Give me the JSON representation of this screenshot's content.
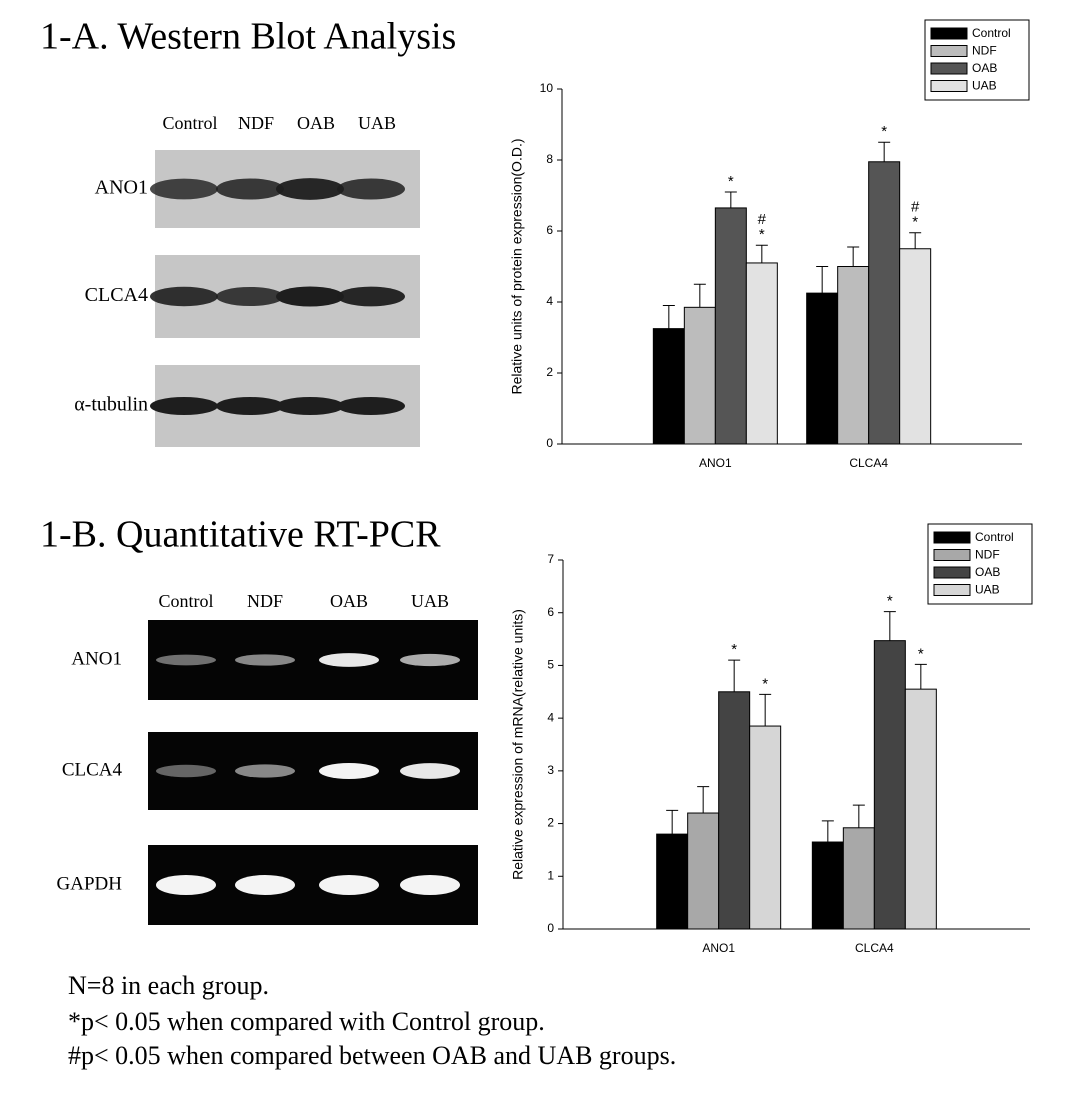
{
  "blots": [
    {
      "title": "1-A. Western Blot Analysis",
      "lanes": [
        "Control",
        "NDF",
        "OAB",
        "UAB"
      ],
      "rows": [
        "ANO1",
        "CLCA4",
        "α-tubulin"
      ]
    },
    {
      "title": "1-B. Quantitative RT-PCR",
      "lanes": [
        "Control",
        "NDF",
        "OAB",
        "UAB"
      ],
      "rows": [
        "ANO1",
        "CLCA4",
        "GAPDH"
      ]
    }
  ],
  "notes": [
    "N=8 in each group.",
    "*p< 0.05 when compared with Control group.",
    "#p< 0.05 when compared between OAB and UAB groups."
  ],
  "chart_data": [
    {
      "type": "bar",
      "ylabel": "Relative units of protein expression(O.D.)",
      "categories": [
        "ANO1",
        "CLCA4"
      ],
      "series": [
        {
          "name": "Control",
          "color": "#000000",
          "values": [
            3.25,
            4.25
          ],
          "errors": [
            0.65,
            0.75
          ]
        },
        {
          "name": "NDF",
          "color": "#bcbcbc",
          "values": [
            3.85,
            5.0
          ],
          "errors": [
            0.65,
            0.55
          ]
        },
        {
          "name": "OAB",
          "color": "#555555",
          "values": [
            6.65,
            7.95
          ],
          "errors": [
            0.45,
            0.55
          ]
        },
        {
          "name": "UAB",
          "color": "#e2e2e2",
          "values": [
            5.1,
            5.5
          ],
          "errors": [
            0.5,
            0.45
          ]
        }
      ],
      "annotations": [
        {
          "text": "*",
          "category": 0,
          "series": 2
        },
        {
          "text": "*",
          "category": 0,
          "series": 3
        },
        {
          "text": "#",
          "category": 0,
          "series": 3
        },
        {
          "text": "*",
          "category": 1,
          "series": 2
        },
        {
          "text": "*",
          "category": 1,
          "series": 3
        },
        {
          "text": "#",
          "category": 1,
          "series": 3
        }
      ],
      "ylim": [
        0,
        10
      ],
      "yticks": [
        0,
        2,
        4,
        6,
        8,
        10
      ],
      "legend": "upper right"
    },
    {
      "type": "bar",
      "ylabel": "Relative expression of mRNA(relative units)",
      "categories": [
        "ANO1",
        "CLCA4"
      ],
      "series": [
        {
          "name": "Control",
          "color": "#000000",
          "values": [
            1.8,
            1.65
          ],
          "errors": [
            0.45,
            0.4
          ]
        },
        {
          "name": "NDF",
          "color": "#a8a8a8",
          "values": [
            2.2,
            1.92
          ],
          "errors": [
            0.5,
            0.43
          ]
        },
        {
          "name": "OAB",
          "color": "#444444",
          "values": [
            4.5,
            5.47
          ],
          "errors": [
            0.6,
            0.55
          ]
        },
        {
          "name": "UAB",
          "color": "#d6d6d6",
          "values": [
            3.85,
            4.55
          ],
          "errors": [
            0.6,
            0.47
          ]
        }
      ],
      "annotations": [
        {
          "text": "*",
          "category": 0,
          "series": 2
        },
        {
          "text": "*",
          "category": 0,
          "series": 3
        },
        {
          "text": "*",
          "category": 1,
          "series": 2
        },
        {
          "text": "*",
          "category": 1,
          "series": 3
        }
      ],
      "ylim": [
        0,
        7
      ],
      "yticks": [
        0,
        1,
        2,
        3,
        4,
        5,
        6,
        7
      ],
      "legend": "upper right"
    }
  ]
}
